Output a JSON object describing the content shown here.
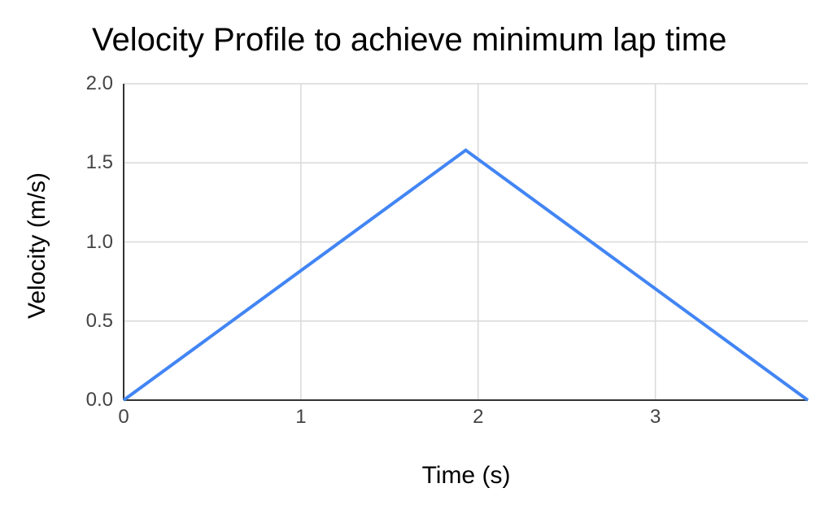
{
  "chart_data": {
    "type": "line",
    "title": "Velocity Profile to achieve minimum lap time",
    "xlabel": "Time (s)",
    "ylabel": "Velocity (m/s)",
    "series": [
      {
        "name": "velocity",
        "x": [
          0,
          1.93,
          3.86
        ],
        "y": [
          0,
          1.58,
          0
        ]
      }
    ],
    "xlim": [
      0,
      3.86
    ],
    "ylim": [
      0,
      2.0
    ],
    "x_ticks": [
      {
        "value": 0,
        "label": "0"
      },
      {
        "value": 1,
        "label": "1"
      },
      {
        "value": 2,
        "label": "2"
      },
      {
        "value": 3,
        "label": "3"
      }
    ],
    "y_ticks": [
      {
        "value": 0.0,
        "label": "0.0"
      },
      {
        "value": 0.5,
        "label": "0.5"
      },
      {
        "value": 1.0,
        "label": "1.0"
      },
      {
        "value": 1.5,
        "label": "1.5"
      },
      {
        "value": 2.0,
        "label": "2.0"
      }
    ],
    "grid": true,
    "legend": "none",
    "colors": {
      "line": "#4285f4",
      "axis": "#333333",
      "gridline": "#d9d9d9",
      "tick_label": "#444444",
      "title": "#000000",
      "background": "#ffffff"
    }
  }
}
